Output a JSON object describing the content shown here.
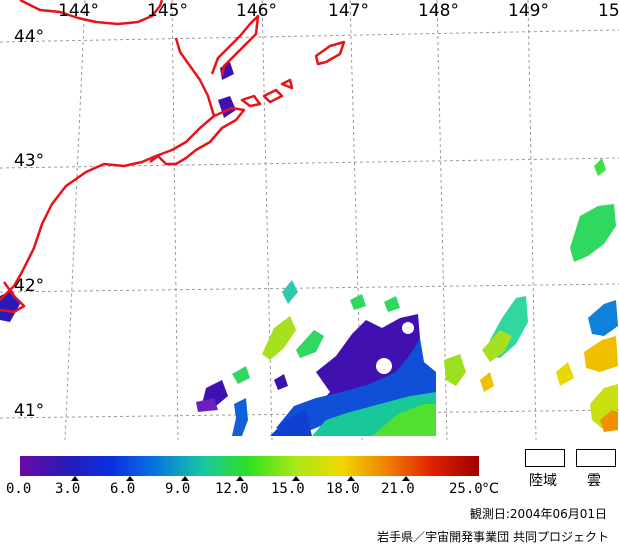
{
  "map": {
    "longitudes": [
      "144°",
      "145°",
      "146°",
      "147°",
      "148°",
      "149°",
      "15"
    ],
    "latitudes": [
      "44°",
      "43°",
      "42°",
      "41°"
    ],
    "coastline_color": "#e8131a",
    "grid_color": "#9c9c9c"
  },
  "legend": {
    "ticks": [
      "0.0",
      "3.0",
      "6.0",
      "9.0",
      "12.0",
      "15.0",
      "18.0",
      "21.0",
      "25.0"
    ],
    "unit": "°C",
    "gradient": [
      "#6a0aa8",
      "#2a1ab8",
      "#0a30e0",
      "#0a78e0",
      "#18c8a0",
      "#30e020",
      "#a8e818",
      "#f0d800",
      "#f08000",
      "#e02000",
      "#a00000"
    ],
    "land_label": "陸域",
    "cloud_label": "雲"
  },
  "footer": {
    "observation_date": "観測日:2004年06月01日",
    "credit": "岩手県／宇宙開発事業団 共同プロジェクト"
  }
}
